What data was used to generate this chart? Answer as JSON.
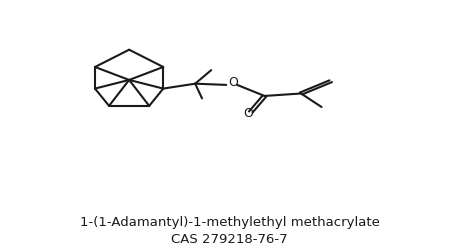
{
  "title_line1": "1-(1-Adamantyl)-1-methylethyl methacrylate",
  "title_line2": "CAS 279218-76-7",
  "bg_color": "#ffffff",
  "line_color": "#1a1a1a",
  "text_color": "#1a1a1a",
  "line_width": 1.5,
  "font_size_title": 9.5,
  "font_size_cas": 9.5,
  "label_O1": "O",
  "label_O2": "O"
}
